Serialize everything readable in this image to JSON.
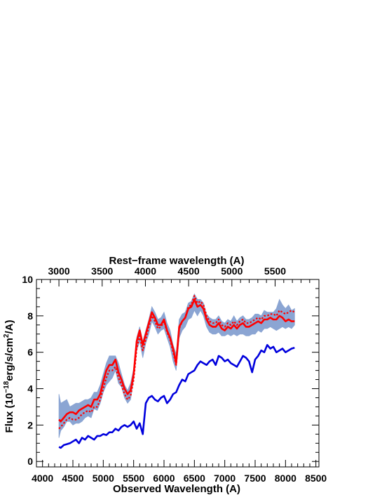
{
  "chart_data": {
    "type": "line",
    "title": "",
    "xlabel": "Observed Wavelength (A)",
    "x2label": "Rest−frame wavelength (A)",
    "ylabel_parts": {
      "pre": "Flux (10",
      "exp": "−18",
      "mid": "erg/s/cm",
      "exp2": "2",
      "post": "/A)"
    },
    "xlim": [
      3900,
      8550
    ],
    "ylim": [
      -0.3,
      10
    ],
    "rest_frame_factor": 1.4234,
    "xticks": [
      4000,
      4500,
      5000,
      5500,
      6000,
      6500,
      7000,
      7500,
      8000,
      8500
    ],
    "xtick_labels": [
      "4000",
      "4500",
      "5000",
      "5500",
      "6000",
      "6500",
      "7000",
      "7500",
      "8000",
      "8500"
    ],
    "yticks": [
      0,
      2,
      4,
      6,
      8,
      10
    ],
    "ytick_labels": [
      "0",
      "2",
      "4",
      "6",
      "8",
      "10"
    ],
    "x2ticks": [
      3000,
      3500,
      4000,
      4500,
      5000,
      5500
    ],
    "x2tick_labels": [
      "3000",
      "3500",
      "4000",
      "4500",
      "5000",
      "5500"
    ],
    "colors": {
      "observed_band": "#7f9ccf",
      "model_solid": "#ff0000",
      "model_dotted": "#ff0000",
      "blue_spectrum": "#0000dd"
    },
    "series": [
      {
        "style": "band",
        "color": "#7f9ccf",
        "x": [
          4270,
          4300,
          4350,
          4400,
          4450,
          4500,
          4550,
          4600,
          4650,
          4700,
          4750,
          4800,
          4850,
          4900,
          4950,
          5000,
          5050,
          5100,
          5150,
          5200,
          5250,
          5300,
          5350,
          5400,
          5450,
          5500,
          5550,
          5600,
          5650,
          5700,
          5750,
          5800,
          5850,
          5900,
          5950,
          6000,
          6050,
          6100,
          6150,
          6200,
          6250,
          6300,
          6350,
          6400,
          6450,
          6500,
          6550,
          6600,
          6650,
          6700,
          6750,
          6800,
          6850,
          6900,
          6950,
          7000,
          7050,
          7100,
          7150,
          7200,
          7250,
          7300,
          7350,
          7400,
          7450,
          7500,
          7550,
          7600,
          7650,
          7700,
          7750,
          7800,
          7850,
          7900,
          7950,
          8000,
          8050,
          8100,
          8150
        ],
        "low": [
          1.3,
          1.7,
          1.9,
          2.2,
          2.2,
          2.0,
          2.1,
          2.1,
          2.2,
          2.4,
          2.5,
          2.4,
          2.9,
          2.8,
          3.2,
          3.8,
          4.2,
          4.4,
          4.6,
          5.0,
          4.3,
          4.1,
          3.5,
          3.2,
          3.4,
          4.5,
          6.1,
          6.6,
          5.7,
          6.5,
          7.0,
          7.7,
          7.4,
          7.0,
          7.2,
          7.3,
          6.8,
          6.3,
          5.5,
          5.0,
          6.8,
          7.2,
          7.4,
          7.8,
          7.9,
          8.3,
          8.0,
          8.3,
          8.0,
          7.4,
          7.1,
          7.0,
          7.0,
          7.1,
          6.9,
          6.9,
          7.0,
          6.9,
          7.0,
          6.9,
          7.0,
          7.0,
          6.9,
          6.9,
          7.0,
          7.0,
          7.2,
          7.1,
          7.3,
          7.3,
          7.4,
          7.3,
          7.2,
          7.3,
          7.4,
          7.3,
          7.4,
          7.3,
          7.5
        ],
        "high": [
          3.7,
          3.2,
          3.3,
          3.4,
          3.0,
          3.1,
          3.2,
          3.2,
          3.3,
          3.4,
          3.4,
          3.5,
          3.8,
          3.8,
          4.2,
          4.8,
          5.4,
          5.8,
          5.8,
          5.8,
          5.4,
          4.8,
          4.2,
          3.9,
          4.3,
          5.1,
          6.8,
          7.4,
          6.6,
          7.2,
          7.8,
          8.5,
          8.2,
          7.8,
          7.9,
          8.2,
          7.6,
          7.2,
          6.4,
          5.9,
          7.8,
          8.1,
          8.2,
          8.7,
          8.8,
          9.2,
          8.9,
          8.9,
          8.7,
          8.1,
          7.9,
          7.8,
          7.8,
          8.0,
          7.7,
          7.6,
          7.8,
          7.7,
          8.0,
          7.7,
          7.9,
          8.0,
          7.8,
          7.8,
          7.9,
          8.1,
          8.1,
          8.0,
          8.3,
          8.2,
          8.2,
          8.2,
          8.4,
          8.9,
          8.6,
          8.4,
          8.6,
          8.3,
          8.4
        ]
      },
      {
        "style": "solid",
        "color": "#ff0000",
        "x": [
          4270,
          4300,
          4350,
          4400,
          4450,
          4500,
          4550,
          4600,
          4650,
          4700,
          4750,
          4800,
          4850,
          4900,
          4950,
          5000,
          5050,
          5100,
          5150,
          5200,
          5250,
          5300,
          5350,
          5400,
          5450,
          5500,
          5550,
          5600,
          5650,
          5700,
          5750,
          5800,
          5850,
          5900,
          5950,
          6000,
          6050,
          6100,
          6150,
          6200,
          6250,
          6300,
          6350,
          6400,
          6450,
          6500,
          6550,
          6600,
          6650,
          6700,
          6750,
          6800,
          6850,
          6900,
          6950,
          7000,
          7050,
          7100,
          7150,
          7200,
          7250,
          7300,
          7350,
          7400,
          7450,
          7500,
          7550,
          7600,
          7650,
          7700,
          7750,
          7800,
          7850,
          7900,
          7950,
          8000,
          8050,
          8100,
          8150
        ],
        "y": [
          2.3,
          2.2,
          2.4,
          2.6,
          2.7,
          2.7,
          2.6,
          2.8,
          2.9,
          3.0,
          3.1,
          3.0,
          3.4,
          3.4,
          3.7,
          4.4,
          5.0,
          5.3,
          5.3,
          5.6,
          4.9,
          4.5,
          4.0,
          3.7,
          3.9,
          4.8,
          6.6,
          7.2,
          6.4,
          7.0,
          7.6,
          8.2,
          7.9,
          7.5,
          7.5,
          7.8,
          7.2,
          6.8,
          6.2,
          5.4,
          7.4,
          7.7,
          7.9,
          8.4,
          8.5,
          8.9,
          8.5,
          8.6,
          8.4,
          7.8,
          7.5,
          7.4,
          7.4,
          7.6,
          7.3,
          7.2,
          7.4,
          7.3,
          7.5,
          7.3,
          7.5,
          7.6,
          7.4,
          7.4,
          7.5,
          7.6,
          7.7,
          7.6,
          7.8,
          7.8,
          7.9,
          7.8,
          7.8,
          8.0,
          7.9,
          7.7,
          7.8,
          7.7,
          7.7
        ]
      },
      {
        "style": "dotted",
        "color": "#ff0000",
        "x": [
          4270,
          4300,
          4350,
          4400,
          4450,
          4500,
          4550,
          4600,
          4650,
          4700,
          4750,
          4800,
          4850,
          4900,
          4950,
          5000,
          5050,
          5100,
          5150,
          5200,
          5250,
          5300,
          5350,
          5400,
          5450,
          5500,
          5550,
          5600,
          5650,
          5700,
          5750,
          5800,
          5850,
          5900,
          5950,
          6000,
          6050,
          6100,
          6150,
          6200,
          6250,
          6300,
          6350,
          6400,
          6450,
          6500,
          6550,
          6600,
          6650,
          6700,
          6750,
          6800,
          6850,
          6900,
          6950,
          7000,
          7050,
          7100,
          7150,
          7200,
          7250,
          7300,
          7350,
          7400,
          7450,
          7500,
          7550,
          7600,
          7650,
          7700,
          7750,
          7800,
          7850,
          7900,
          7950,
          8000,
          8050,
          8100,
          8150
        ],
        "y": [
          1.8,
          1.9,
          2.1,
          2.3,
          2.4,
          2.3,
          2.3,
          2.4,
          2.6,
          2.7,
          2.8,
          2.7,
          3.0,
          3.0,
          3.4,
          4.0,
          4.6,
          5.0,
          5.0,
          5.2,
          4.6,
          4.2,
          3.7,
          3.4,
          3.6,
          4.5,
          6.2,
          6.9,
          6.1,
          6.7,
          7.4,
          8.0,
          7.7,
          7.3,
          7.4,
          7.7,
          7.1,
          6.7,
          6.0,
          5.3,
          7.3,
          7.7,
          7.9,
          8.5,
          8.6,
          9.1,
          8.7,
          8.8,
          8.6,
          8.0,
          7.7,
          7.6,
          7.6,
          7.8,
          7.5,
          7.4,
          7.6,
          7.5,
          7.7,
          7.5,
          7.7,
          7.8,
          7.6,
          7.6,
          7.7,
          7.8,
          7.9,
          7.8,
          8.0,
          8.0,
          8.1,
          8.1,
          8.0,
          8.3,
          8.2,
          8.1,
          8.2,
          8.3,
          8.2
        ]
      },
      {
        "style": "solid",
        "color": "#0000dd",
        "x": [
          4270,
          4300,
          4350,
          4400,
          4450,
          4500,
          4550,
          4600,
          4650,
          4700,
          4750,
          4800,
          4850,
          4900,
          4950,
          5000,
          5050,
          5100,
          5150,
          5200,
          5250,
          5300,
          5350,
          5400,
          5450,
          5500,
          5550,
          5600,
          5650,
          5700,
          5750,
          5800,
          5850,
          5900,
          5950,
          6000,
          6050,
          6100,
          6150,
          6200,
          6250,
          6300,
          6350,
          6400,
          6450,
          6500,
          6550,
          6600,
          6650,
          6700,
          6750,
          6800,
          6850,
          6900,
          6950,
          7000,
          7050,
          7100,
          7150,
          7200,
          7250,
          7300,
          7350,
          7400,
          7450,
          7500,
          7550,
          7600,
          7650,
          7700,
          7750,
          7800,
          7850,
          7900,
          7950,
          8000,
          8050,
          8100,
          8150
        ],
        "y": [
          0.8,
          0.75,
          0.9,
          0.95,
          1.0,
          1.1,
          1.2,
          1.0,
          1.3,
          1.2,
          1.4,
          1.3,
          1.2,
          1.4,
          1.4,
          1.5,
          1.45,
          1.6,
          1.6,
          1.8,
          1.7,
          1.9,
          2.0,
          1.9,
          2.0,
          2.2,
          1.8,
          2.1,
          1.5,
          3.2,
          3.5,
          3.6,
          3.4,
          3.3,
          3.5,
          3.6,
          3.2,
          3.4,
          3.7,
          3.8,
          4.2,
          4.5,
          4.4,
          4.8,
          4.9,
          5.0,
          5.3,
          5.5,
          5.4,
          5.3,
          5.5,
          5.6,
          5.3,
          5.8,
          5.7,
          5.5,
          5.6,
          5.4,
          5.3,
          5.2,
          5.5,
          5.8,
          5.7,
          5.5,
          4.9,
          5.6,
          5.8,
          6.1,
          6.0,
          6.4,
          6.2,
          6.3,
          6.0,
          6.1,
          6.2,
          6.0,
          6.1,
          6.2,
          6.25
        ]
      }
    ]
  }
}
